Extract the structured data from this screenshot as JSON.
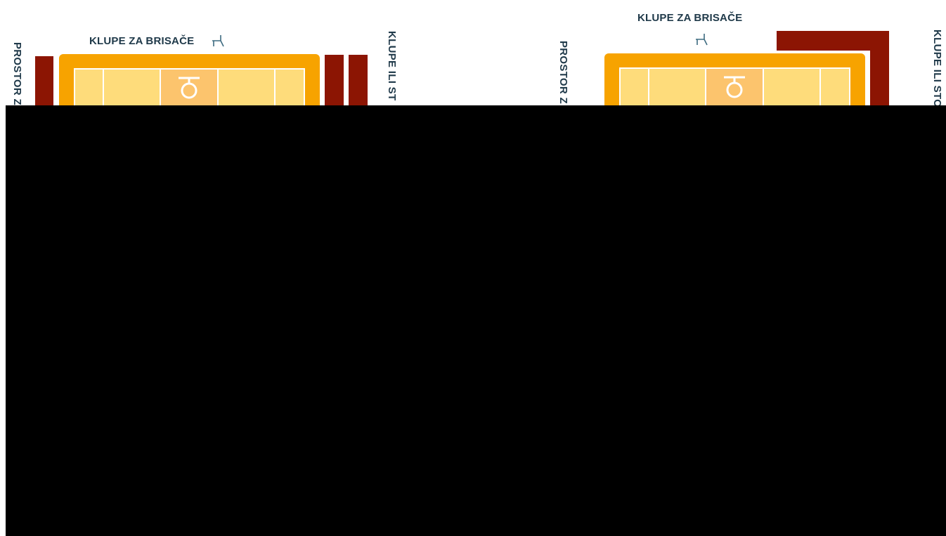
{
  "diagrams": [
    {
      "top_label": "KLUPE ZA BRISAČE",
      "left_label": "PROSTOR Z",
      "right_label": "KLUPE ILI ST"
    },
    {
      "top_label": "KLUPE ZA BRISAČE",
      "left_label": "PROSTOR Z",
      "right_label": "KLUPE ILI STO"
    }
  ],
  "colors": {
    "court_outer": "#f7a300",
    "court_inner": "#fedc7b",
    "court_centre": "#fcc46d",
    "dark_bar": "#8c1503",
    "text": "#203a4a",
    "overlay": "#000000"
  },
  "icons": {
    "bench": "bench-icon",
    "referee": "referee-stand-icon"
  }
}
